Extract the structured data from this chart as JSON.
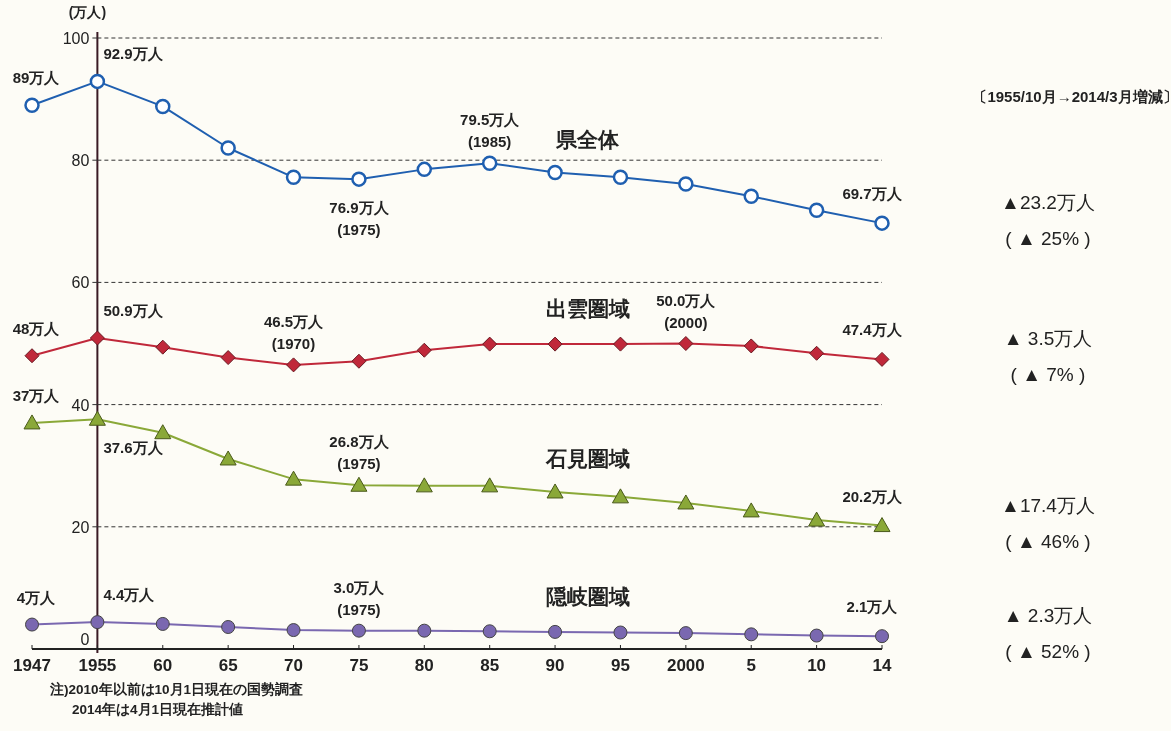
{
  "chart_data": {
    "type": "line",
    "ylabel": "(万人)",
    "categories": [
      "1947",
      "1955",
      "60",
      "65",
      "70",
      "75",
      "80",
      "85",
      "90",
      "95",
      "2000",
      "5",
      "10",
      "14"
    ],
    "ylim": [
      0,
      100
    ],
    "yticks": [
      0,
      20,
      40,
      60,
      80,
      100
    ],
    "grid": "y",
    "series": [
      {
        "name": "県全体",
        "color": "#1f5fb0",
        "marker": "circle",
        "values": [
          89,
          92.9,
          88.8,
          82.0,
          77.2,
          76.9,
          78.5,
          79.5,
          78.0,
          77.2,
          76.1,
          74.1,
          71.8,
          69.7
        ],
        "value_labels": [
          "89万人",
          "92.9万人",
          null,
          null,
          null,
          "76.9万人",
          null,
          "79.5万人",
          null,
          null,
          null,
          null,
          null,
          "69.7万人"
        ]
      },
      {
        "name": "出雲圏域",
        "color": "#c0283a",
        "marker": "diamond",
        "values": [
          48,
          50.9,
          49.4,
          47.7,
          46.5,
          47.1,
          48.9,
          49.9,
          49.9,
          49.9,
          50.0,
          49.6,
          48.4,
          47.4
        ],
        "value_labels": [
          "48万人",
          "50.9万人",
          null,
          null,
          "46.5万人",
          null,
          null,
          null,
          null,
          null,
          "50.0万人",
          null,
          null,
          "47.4万人"
        ]
      },
      {
        "name": "石見圏域",
        "color": "#8aa838",
        "marker": "triangle",
        "values": [
          37,
          37.6,
          35.4,
          31.1,
          27.8,
          26.8,
          26.7,
          26.7,
          25.7,
          24.9,
          23.9,
          22.6,
          21.1,
          20.2
        ],
        "value_labels": [
          "37万人",
          "37.6万人",
          null,
          null,
          null,
          "26.8万人",
          null,
          null,
          null,
          null,
          null,
          null,
          null,
          "20.2万人"
        ]
      },
      {
        "name": "隠岐圏域",
        "color": "#7a68b0",
        "marker": "circle",
        "values": [
          4,
          4.4,
          4.1,
          3.6,
          3.1,
          3.0,
          3.0,
          2.9,
          2.8,
          2.7,
          2.6,
          2.4,
          2.2,
          2.1
        ],
        "value_labels": [
          "4万人",
          "4.4万人",
          null,
          null,
          null,
          "3.0万人",
          null,
          null,
          null,
          null,
          null,
          null,
          null,
          "2.1万人"
        ]
      }
    ],
    "annotations": [
      "〔1955/10月→2014/3月増減〕",
      "▲23.2万人",
      "( ▲ 25% )",
      "▲ 3.5万人",
      "( ▲ 7% )",
      "▲17.4万人",
      "( ▲ 46% )",
      "▲ 2.3万人",
      "( ▲ 52% )",
      "注)2010年以前は10月1日現在の国勢調査",
      "2014年は4月1日現在推計値",
      {
        "text": "(1985)",
        "x": "85",
        "y": 79.5
      },
      {
        "text": "(1975)",
        "x": "75",
        "y": 76.9
      },
      {
        "text": "(1970)",
        "x": "70",
        "y": 46.5
      },
      {
        "text": "(2000)",
        "x": "2000",
        "y": 50.0
      },
      {
        "text": "(1975)",
        "x": "75",
        "y": 26.8
      },
      {
        "text": "(1975)",
        "x": "75",
        "y": 3.0
      }
    ]
  }
}
